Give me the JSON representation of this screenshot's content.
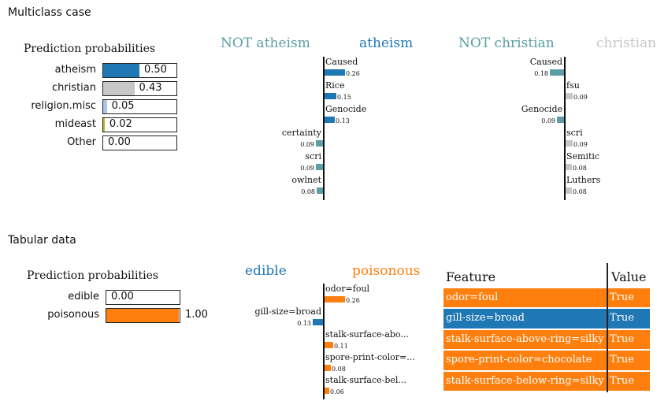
{
  "colors": {
    "blue": "#1f77b4",
    "gray": "#c7c7c7",
    "teal": "#5b9ea6",
    "olive": "#bcbd22",
    "orange": "#ff7f0e",
    "light_blue": "#aec7e8"
  },
  "chart_data": [
    {
      "type": "bar",
      "title": "Multiclass case",
      "subtitle": "Prediction probabilities",
      "categories": [
        "atheism",
        "christian",
        "religion.misc",
        "mideast",
        "Other"
      ],
      "values": [
        0.5,
        0.43,
        0.05,
        0.02,
        0.0
      ],
      "value_labels": [
        "0.50",
        "0.43",
        "0.05",
        "0.02",
        "0.00"
      ],
      "bar_colors": [
        "#1f77b4",
        "#c7c7c7",
        "#aec7e8",
        "#bcbd22",
        "#ffffff"
      ],
      "xlim": [
        0,
        1
      ]
    },
    {
      "type": "bar",
      "class_left": "NOT atheism",
      "class_right": "atheism",
      "features": [
        "Caused",
        "Rice",
        "Genocide",
        "certainty",
        "scri",
        "owlnet"
      ],
      "values": [
        0.26,
        0.15,
        0.13,
        -0.09,
        -0.09,
        -0.08
      ],
      "value_labels": [
        "0.26",
        "0.15",
        "0.13",
        "0.09",
        "0.09",
        "0.08"
      ],
      "positive_color": "#1f77b4",
      "negative_color": "#5b9ea6"
    },
    {
      "type": "bar",
      "class_left": "NOT christian",
      "class_right": "christian",
      "features": [
        "Caused",
        "fsu",
        "Genocide",
        "scri",
        "Semitic",
        "Luthers"
      ],
      "values": [
        -0.18,
        0.09,
        -0.09,
        0.09,
        0.08,
        0.08
      ],
      "value_labels": [
        "0.18",
        "0.09",
        "0.09",
        "0.09",
        "0.08",
        "0.08"
      ],
      "positive_color": "#c7c7c7",
      "negative_color": "#5b9ea6"
    },
    {
      "type": "bar",
      "title": "Tabular data",
      "subtitle": "Prediction probabilities",
      "categories": [
        "edible",
        "poisonous"
      ],
      "values": [
        0.0,
        1.0
      ],
      "value_labels": [
        "0.00",
        "1.00"
      ],
      "bar_colors": [
        "#1f77b4",
        "#ff7f0e"
      ],
      "xlim": [
        0,
        1
      ]
    },
    {
      "type": "bar",
      "class_left": "edible",
      "class_right": "poisonous",
      "features": [
        "odor=foul",
        "gill-size=broad",
        "stalk-surface-abo...",
        "spore-print-color=...",
        "stalk-surface-bel..."
      ],
      "values": [
        0.26,
        -0.13,
        0.11,
        0.08,
        0.06
      ],
      "value_labels": [
        "0.26",
        "0.13",
        "0.11",
        "0.08",
        "0.06"
      ],
      "positive_color": "#ff7f0e",
      "negative_color": "#1f77b4"
    },
    {
      "type": "table",
      "columns": [
        "Feature",
        "Value"
      ],
      "rows": [
        {
          "feature": "odor=foul",
          "value": "True",
          "color": "#ff7f0e"
        },
        {
          "feature": "gill-size=broad",
          "value": "True",
          "color": "#1f77b4"
        },
        {
          "feature": "stalk-surface-above-ring=silky",
          "value": "True",
          "color": "#ff7f0e"
        },
        {
          "feature": "spore-print-color=chocolate",
          "value": "True",
          "color": "#ff7f0e"
        },
        {
          "feature": "stalk-surface-below-ring=silky",
          "value": "True",
          "color": "#ff7f0e"
        }
      ]
    }
  ]
}
